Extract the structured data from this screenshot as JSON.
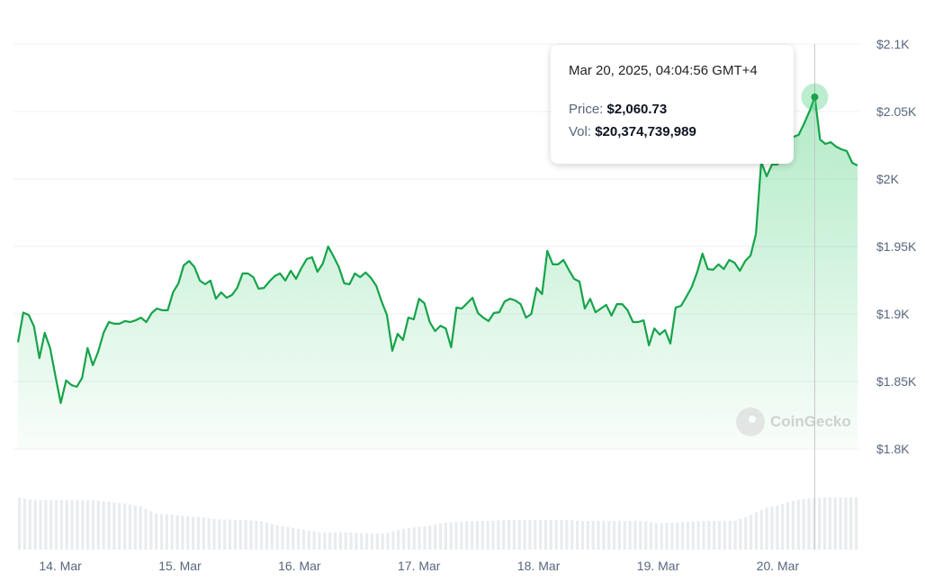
{
  "chart_data": {
    "type": "area",
    "x_start": "Mar 13, 2025 15:30",
    "x_end": "Mar 20, 2025 16:00",
    "x_ticks": [
      "14. Mar",
      "15. Mar",
      "16. Mar",
      "17. Mar",
      "18. Mar",
      "19. Mar",
      "20. Mar"
    ],
    "y_ticks": [
      "$2.1K",
      "$2.05K",
      "$2K",
      "$1.95K",
      "$1.9K",
      "$1.85K",
      "$1.8K"
    ],
    "y_tick_values": [
      2100,
      2050,
      2000,
      1950,
      1900,
      1850,
      1800
    ],
    "ylim": [
      1800,
      2100
    ],
    "grid": true,
    "line_color": "#16a34a",
    "fill_color": "#22c55e",
    "price": [
      1879,
      1901,
      1899.3,
      1890.7,
      1867.3,
      1886,
      1874.7,
      1854,
      1834,
      1850.7,
      1847.3,
      1846,
      1852.7,
      1874.7,
      1862,
      1872,
      1886,
      1894,
      1892.7,
      1892.7,
      1894.7,
      1894,
      1895.3,
      1897.3,
      1894,
      1900.7,
      1904,
      1902.7,
      1902.7,
      1916,
      1922.7,
      1936,
      1939.3,
      1934.7,
      1924.7,
      1922,
      1924.7,
      1911.3,
      1916,
      1912,
      1914,
      1919.3,
      1930,
      1930,
      1927.3,
      1918.7,
      1919.3,
      1924,
      1928,
      1930,
      1924.7,
      1932,
      1926,
      1934,
      1940.7,
      1942,
      1931.3,
      1937.3,
      1950,
      1942.7,
      1934.7,
      1922.7,
      1922,
      1930,
      1927.3,
      1930.7,
      1926.7,
      1920.7,
      1909.3,
      1899.3,
      1872.7,
      1885.3,
      1880.7,
      1897.3,
      1896,
      1911.3,
      1908,
      1894,
      1887.3,
      1891.3,
      1889.3,
      1875.3,
      1904.7,
      1904,
      1908,
      1912,
      1900.7,
      1897.3,
      1894.7,
      1900.7,
      1901.3,
      1909.3,
      1911.3,
      1910,
      1907.3,
      1897.3,
      1900,
      1919.3,
      1914.7,
      1946.7,
      1936.7,
      1936.7,
      1940,
      1932.7,
      1926,
      1924,
      1904,
      1911.3,
      1901.3,
      1904,
      1906.7,
      1898.7,
      1907.3,
      1907.3,
      1902.7,
      1894,
      1894,
      1895.3,
      1876.7,
      1889.3,
      1884.7,
      1888,
      1878,
      1904.7,
      1906,
      1912.7,
      1920,
      1930.7,
      1944.7,
      1933.3,
      1932.7,
      1936.7,
      1933.3,
      1940,
      1938,
      1932,
      1939.3,
      1943.3,
      1959.3,
      2012.7,
      2002,
      2010.7,
      2010.7,
      2016,
      2022.7,
      2031.3,
      2032.7,
      2041,
      2050,
      2060.73,
      2029.3,
      2026,
      2027.3,
      2024,
      2022,
      2020.7,
      2012,
      2010
    ],
    "volume_billions": [
      20.7,
      19.6,
      19.6,
      19.6,
      19.6,
      19.6,
      18.9,
      18.2,
      17.1,
      14.3,
      13.9,
      13.2,
      12.9,
      12.1,
      11.8,
      11.8,
      11.1,
      9.6,
      8.6,
      7.5,
      6.8,
      6.8,
      6.8,
      6.4,
      6.4,
      7.9,
      8.9,
      9.6,
      10.7,
      11.1,
      11.4,
      11.4,
      11.8,
      11.8,
      11.8,
      11.8,
      11.8,
      11.4,
      11.4,
      11.4,
      11.4,
      11.4,
      10.4,
      10.7,
      11.1,
      11.4,
      11.4,
      11.4,
      13.6,
      16.4,
      17.9,
      19.6,
      20.4,
      20.7,
      20.7,
      20.7
    ],
    "volume_color": "#e9ecef",
    "tooltip": {
      "date": "Mar 20, 2025, 04:04:56 GMT+4",
      "price_label": "Price:",
      "price_value": "$2,060.73",
      "vol_label": "Vol:",
      "vol_value": "$20,374,739,989"
    },
    "watermark": "CoinGecko"
  }
}
